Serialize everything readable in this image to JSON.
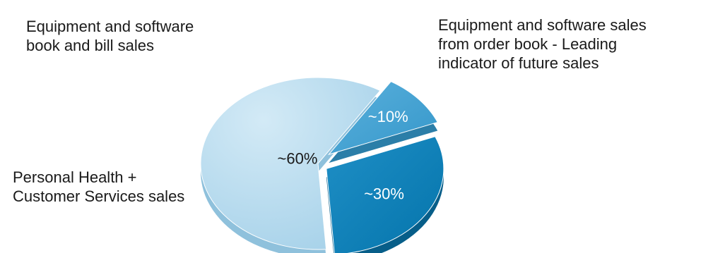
{
  "chart_data": {
    "type": "pie",
    "style": "exploded-3d",
    "slices": [
      {
        "label_lines": [
          "Equipment and software sales",
          "from order book - Leading",
          "indicator of future sales"
        ],
        "value": 30,
        "value_label": "~30%",
        "color": "#0a7db5",
        "side_color": "#075e89",
        "text_color": "#ffffff"
      },
      {
        "label_lines": [
          "Personal Health +",
          "Customer Services sales"
        ],
        "value": 60,
        "value_label": "~60%",
        "color": "#b3d8ec",
        "side_color": "#8fc1dc",
        "text_color": "#1a1a1a"
      },
      {
        "label_lines": [
          "Equipment and software",
          "book and bill sales"
        ],
        "value": 10,
        "value_label": "~10%",
        "color": "#3fa0d2",
        "side_color": "#2b7ea8",
        "text_color": "#ffffff"
      }
    ]
  }
}
